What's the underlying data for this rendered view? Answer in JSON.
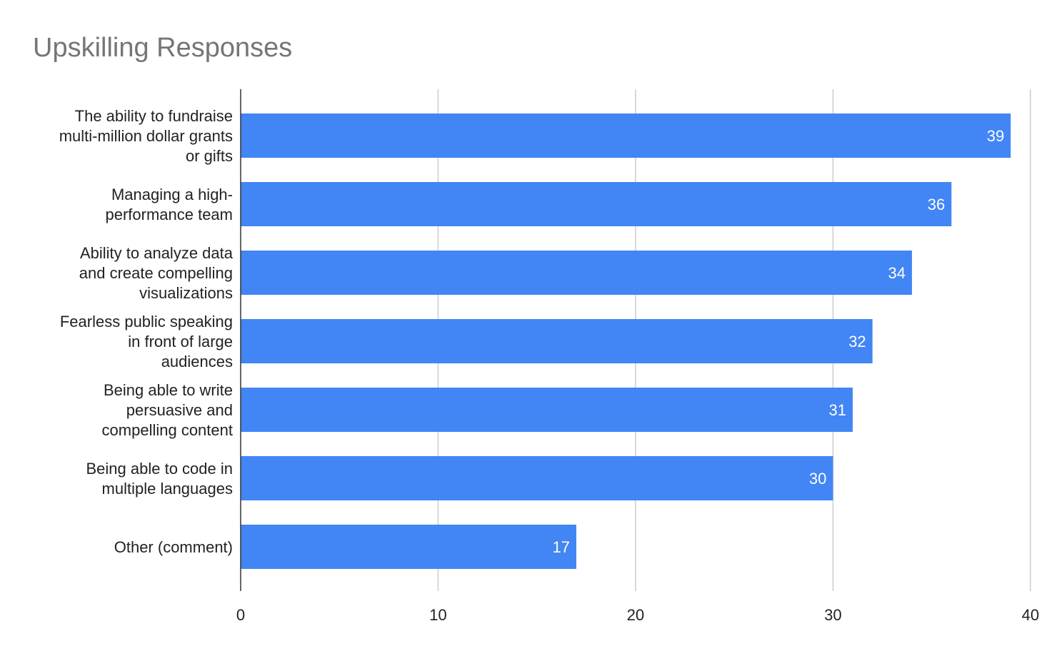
{
  "chart_data": {
    "type": "bar",
    "orientation": "horizontal",
    "title": "Upskilling Responses",
    "categories": [
      [
        "The ability to fundraise",
        "multi-million dollar grants",
        "or gifts"
      ],
      [
        "Managing a high-",
        "performance team"
      ],
      [
        "Ability to analyze data",
        "and create compelling",
        "visualizations"
      ],
      [
        "Fearless public speaking",
        "in front of large",
        "audiences"
      ],
      [
        "Being able to write",
        "persuasive and",
        "compelling content"
      ],
      [
        "Being able to code in",
        "multiple languages"
      ],
      [
        "Other (comment)"
      ]
    ],
    "values": [
      39,
      36,
      34,
      32,
      31,
      30,
      17
    ],
    "data_labels": [
      "39",
      "36",
      "34",
      "32",
      "31",
      "30",
      "17"
    ],
    "xlim": [
      0,
      40
    ],
    "xticks": [
      "0",
      "10",
      "20",
      "30",
      "40"
    ],
    "grid": true,
    "legend": "none",
    "colors": {
      "bar": "#4285f4",
      "grid": "#cccccc",
      "axis": "#333333",
      "title": "#757575"
    }
  }
}
